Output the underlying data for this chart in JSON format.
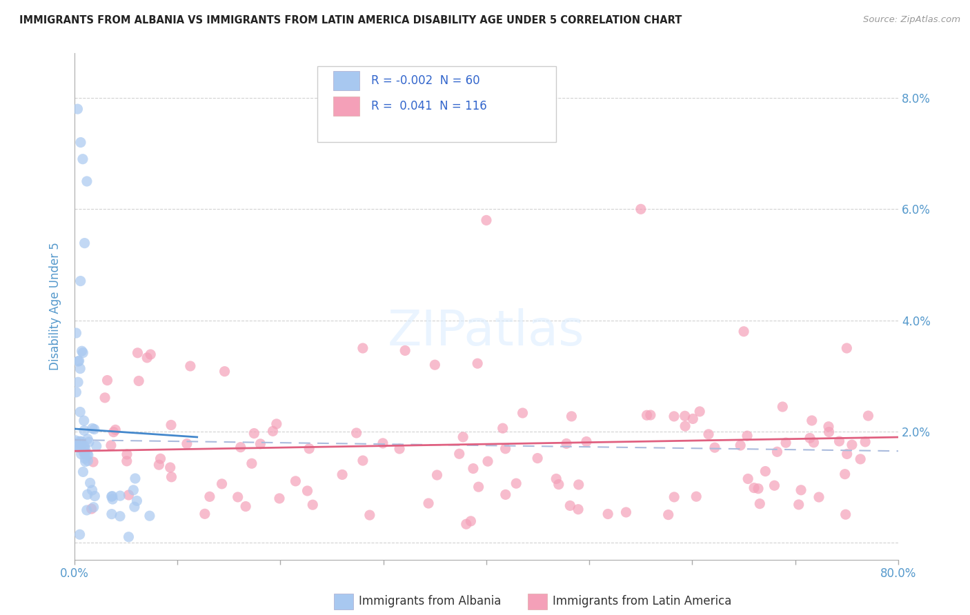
{
  "title": "IMMIGRANTS FROM ALBANIA VS IMMIGRANTS FROM LATIN AMERICA DISABILITY AGE UNDER 5 CORRELATION CHART",
  "source": "Source: ZipAtlas.com",
  "ylabel": "Disability Age Under 5",
  "xlim": [
    0.0,
    80.0
  ],
  "ylim": [
    -0.3,
    8.8
  ],
  "legend_albania_R": "-0.002",
  "legend_albania_N": "60",
  "legend_latinam_R": "0.041",
  "legend_latinam_N": "116",
  "albania_color": "#a8c8f0",
  "latinam_color": "#f4a0b8",
  "trendline_color_albania": "#4488cc",
  "trendline_color_latinam": "#e06080",
  "trendline_color_dashed": "#aabbdd",
  "background_color": "#ffffff",
  "grid_color": "#cccccc",
  "title_color": "#222222",
  "axis_label_color": "#5599cc",
  "legend_R_color": "#3366cc",
  "watermark_color": "#ddeeff"
}
